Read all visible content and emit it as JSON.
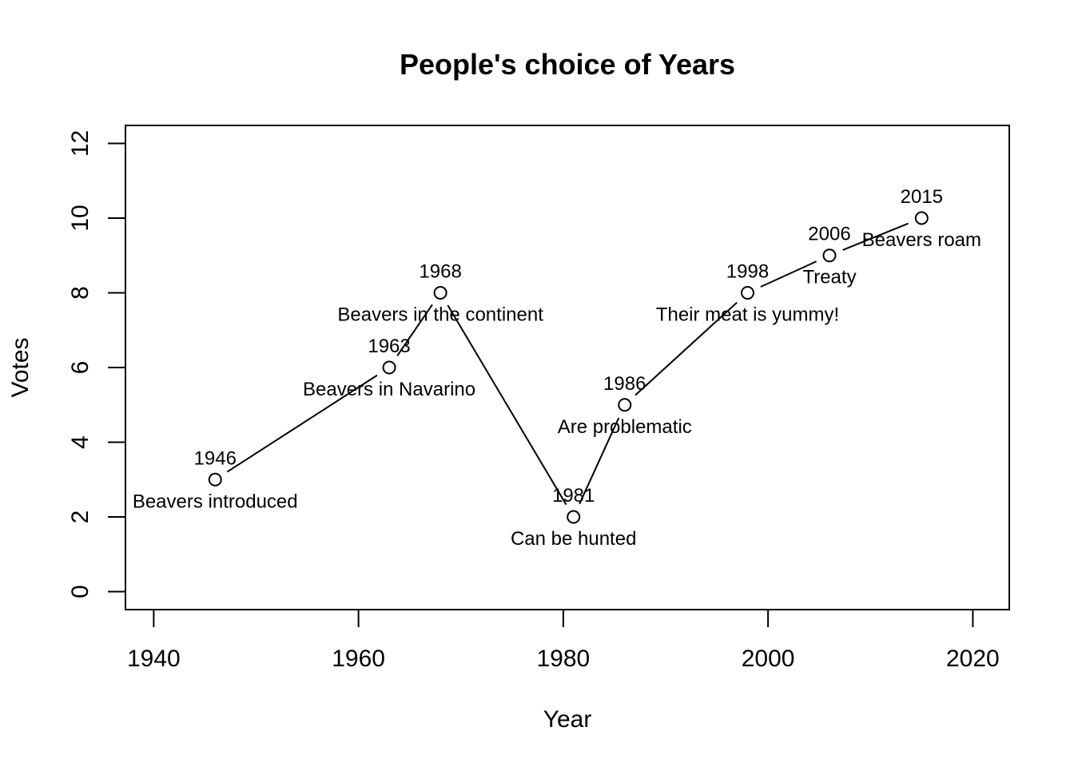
{
  "chart_data": {
    "type": "line",
    "title": "People's choice of Years",
    "xlabel": "Year",
    "ylabel": "Votes",
    "xlim": [
      1937.24,
      2023.56
    ],
    "ylim": [
      -0.48,
      12.48
    ],
    "xticks": [
      1940,
      1960,
      1980,
      2000,
      2020
    ],
    "yticks": [
      0,
      2,
      4,
      6,
      8,
      10,
      12
    ],
    "grid": false,
    "points": [
      {
        "x": 1946,
        "y": 3,
        "year_label": "1946",
        "note": "Beavers introduced"
      },
      {
        "x": 1963,
        "y": 6,
        "year_label": "1963",
        "note": "Beavers in Navarino"
      },
      {
        "x": 1968,
        "y": 8,
        "year_label": "1968",
        "note": "Beavers in the continent"
      },
      {
        "x": 1981,
        "y": 2,
        "year_label": "1981",
        "note": "Can be hunted"
      },
      {
        "x": 1986,
        "y": 5,
        "year_label": "1986",
        "note": "Are problematic"
      },
      {
        "x": 1998,
        "y": 8,
        "year_label": "1998",
        "note": "Their meat is yummy!"
      },
      {
        "x": 2006,
        "y": 9,
        "year_label": "2006",
        "note": "Treaty"
      },
      {
        "x": 2015,
        "y": 10,
        "year_label": "2015",
        "note": "Beavers roam"
      }
    ]
  }
}
